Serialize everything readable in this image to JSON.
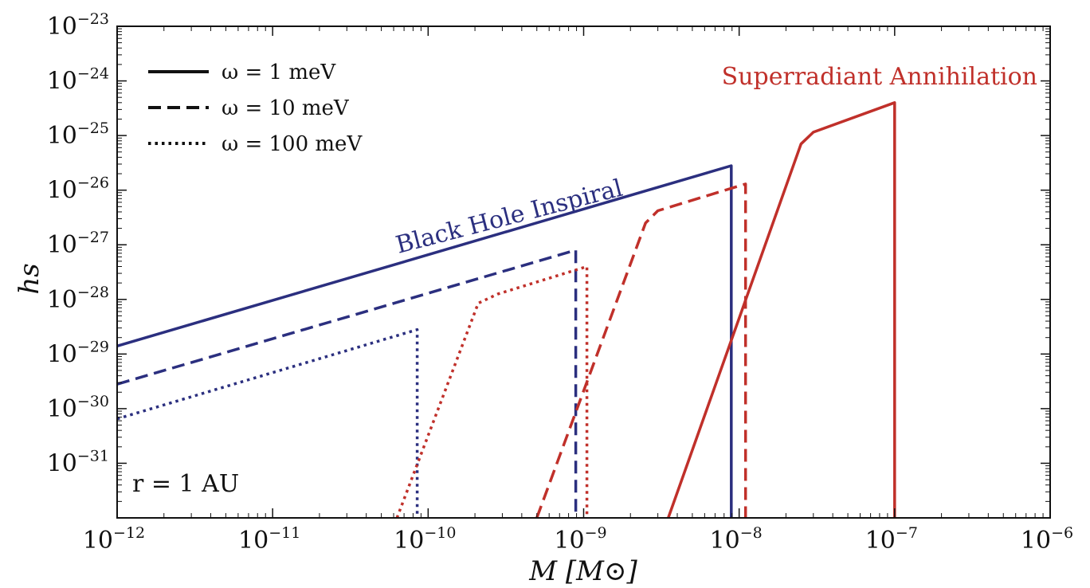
{
  "chart_data": {
    "type": "line",
    "xlabel": "M [M⊙]",
    "ylabel": "hs",
    "x_scale": "log",
    "y_scale": "log",
    "xlim": [
      1e-12,
      1e-06
    ],
    "ylim": [
      1e-32,
      1e-23
    ],
    "grid": false,
    "legend_position": "top-left",
    "x_ticks": [
      {
        "value": 1e-12,
        "base": "10",
        "exp": "−12"
      },
      {
        "value": 1e-11,
        "base": "10",
        "exp": "−11"
      },
      {
        "value": 1e-10,
        "base": "10",
        "exp": "−10"
      },
      {
        "value": 1e-09,
        "base": "10",
        "exp": "−9"
      },
      {
        "value": 1e-08,
        "base": "10",
        "exp": "−8"
      },
      {
        "value": 1e-07,
        "base": "10",
        "exp": "−7"
      },
      {
        "value": 1e-06,
        "base": "10",
        "exp": "−6"
      }
    ],
    "y_ticks": [
      {
        "value": 1e-23,
        "base": "10",
        "exp": "−23"
      },
      {
        "value": 1e-24,
        "base": "10",
        "exp": "−24"
      },
      {
        "value": 1e-25,
        "base": "10",
        "exp": "−25"
      },
      {
        "value": 1e-26,
        "base": "10",
        "exp": "−26"
      },
      {
        "value": 1e-27,
        "base": "10",
        "exp": "−27"
      },
      {
        "value": 1e-28,
        "base": "10",
        "exp": "−28"
      },
      {
        "value": 1e-29,
        "base": "10",
        "exp": "−29"
      },
      {
        "value": 1e-30,
        "base": "10",
        "exp": "−30"
      },
      {
        "value": 1e-31,
        "base": "10",
        "exp": "−31"
      }
    ],
    "legend": [
      {
        "label": "ω = 1 meV",
        "style": "solid"
      },
      {
        "label": "ω = 10 meV",
        "style": "dashed"
      },
      {
        "label": "ω = 100 meV",
        "style": "dotted"
      }
    ],
    "annotations": [
      {
        "text": "Black Hole Inspiral",
        "color": "#2b2f7f"
      },
      {
        "text": "Superradiant Annihilation",
        "color": "#c0302a"
      },
      {
        "text": "r = 1 AU",
        "color": "#111111"
      }
    ],
    "colors": {
      "inspiral": "#2b2f7f",
      "annihilation": "#c0302a",
      "axis": "#111111"
    },
    "series": [
      {
        "group": "inspiral",
        "style": "solid",
        "points": [
          [
            1e-12,
            1.4e-29
          ],
          [
            8.9e-09,
            2.8e-26
          ],
          [
            8.9e-09,
            1e-32
          ]
        ]
      },
      {
        "group": "inspiral",
        "style": "dashed",
        "points": [
          [
            1e-12,
            2.8e-30
          ],
          [
            8.9e-10,
            8e-28
          ],
          [
            8.9e-10,
            1e-32
          ]
        ]
      },
      {
        "group": "inspiral",
        "style": "dotted",
        "points": [
          [
            1e-12,
            6.5e-31
          ],
          [
            8.5e-11,
            2.8e-29
          ],
          [
            8.5e-11,
            1e-32
          ]
        ]
      },
      {
        "group": "annihilation",
        "style": "solid",
        "points": [
          [
            3.5e-09,
            1e-32
          ],
          [
            2.5e-08,
            7e-26
          ],
          [
            3e-08,
            1.15e-25
          ],
          [
            1e-07,
            4e-25
          ],
          [
            1e-07,
            1e-32
          ]
        ]
      },
      {
        "group": "annihilation",
        "style": "dashed",
        "points": [
          [
            5e-10,
            1e-32
          ],
          [
            2.5e-09,
            2.5e-27
          ],
          [
            3e-09,
            4.2e-27
          ],
          [
            1.1e-08,
            1.3e-26
          ],
          [
            1.1e-08,
            1e-32
          ]
        ]
      },
      {
        "group": "annihilation",
        "style": "dotted",
        "points": [
          [
            6.3e-11,
            1e-32
          ],
          [
            2.1e-10,
            8.5e-29
          ],
          [
            2.8e-10,
            1.25e-28
          ],
          [
            1.05e-09,
            4e-28
          ],
          [
            1.05e-09,
            1e-32
          ]
        ]
      }
    ]
  }
}
